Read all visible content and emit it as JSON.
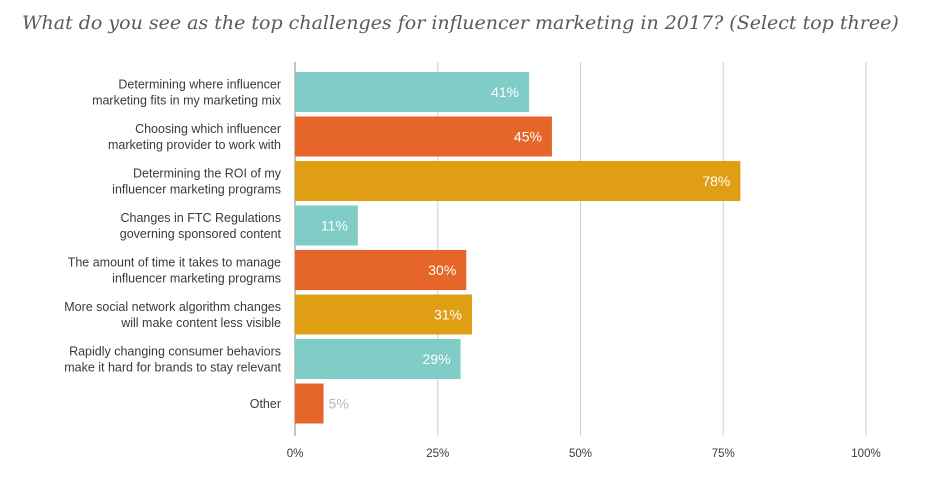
{
  "chart_data": {
    "type": "bar",
    "orientation": "horizontal",
    "title": "What do you see as the top challenges for influencer marketing in 2017? (Select top three)",
    "categories": [
      [
        "Determining where influencer",
        "marketing fits in my marketing mix"
      ],
      [
        "Choosing which influencer",
        "marketing provider to work with"
      ],
      [
        "Determining the ROI of my",
        "influencer marketing programs"
      ],
      [
        "Changes in FTC Regulations",
        "governing sponsored content"
      ],
      [
        "The amount of time it takes to manage",
        "influencer marketing programs"
      ],
      [
        "More social network algorithm changes",
        "will make content less visible"
      ],
      [
        "Rapidly changing consumer behaviors",
        "make it hard for brands to stay relevant"
      ],
      [
        "Other"
      ]
    ],
    "values": [
      41,
      45,
      78,
      11,
      30,
      31,
      29,
      5
    ],
    "data_labels": [
      "41%",
      "45%",
      "78%",
      "11%",
      "30%",
      "31%",
      "29%",
      "5%"
    ],
    "bar_colors": [
      "#7fcdc6",
      "#e66528",
      "#e09e15",
      "#7fcdc6",
      "#e66528",
      "#e09e15",
      "#7fcdc6",
      "#e66528"
    ],
    "xlim": [
      0,
      100
    ],
    "xticks": [
      0,
      25,
      50,
      75,
      100
    ],
    "xtick_labels": [
      "0%",
      "25%",
      "50%",
      "75%",
      "100%"
    ],
    "grid": true,
    "xlabel": "",
    "ylabel": ""
  }
}
